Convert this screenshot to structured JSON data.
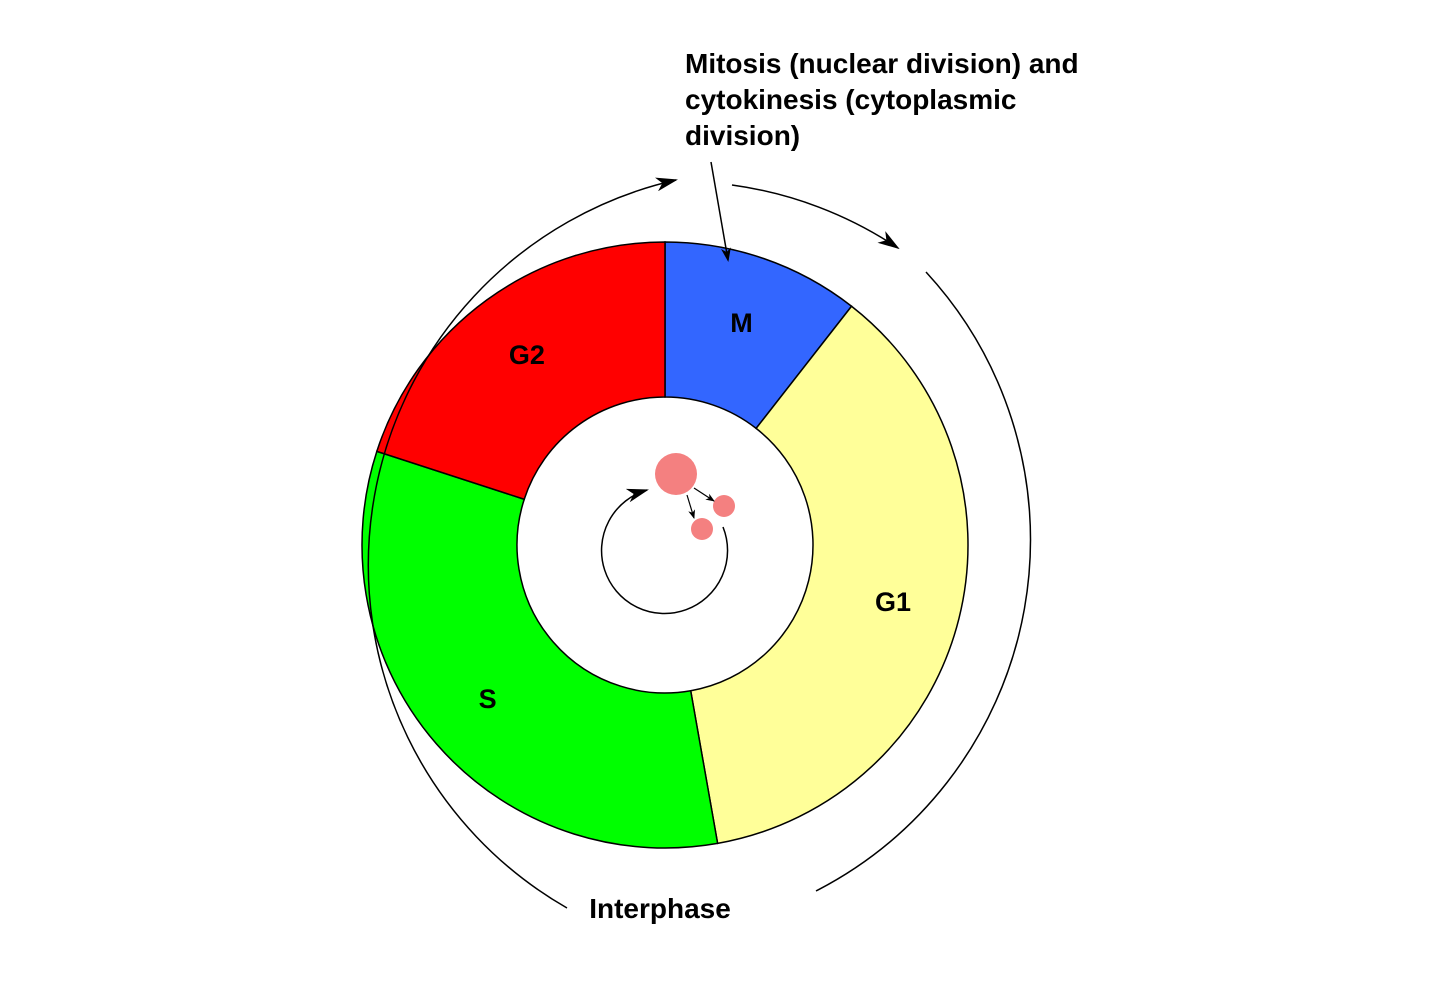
{
  "caption": {
    "line1": "Mitosis (nuclear division) and",
    "line2": "cytokinesis (cytoplasmic",
    "line3": "division)"
  },
  "interphase_label": "Interphase",
  "phases": [
    {
      "id": "M",
      "label": "M",
      "color": "#3366ff",
      "start_deg": 0,
      "end_deg": 38
    },
    {
      "id": "G1",
      "label": "G1",
      "color": "#ffff99",
      "start_deg": 38,
      "end_deg": 170
    },
    {
      "id": "S",
      "label": "S",
      "color": "#00ff00",
      "start_deg": 170,
      "end_deg": 288
    },
    {
      "id": "G2",
      "label": "G2",
      "color": "#ff0000",
      "start_deg": 288,
      "end_deg": 360
    }
  ],
  "colors": {
    "cell_pink": "#f48080",
    "stroke": "#000000"
  }
}
